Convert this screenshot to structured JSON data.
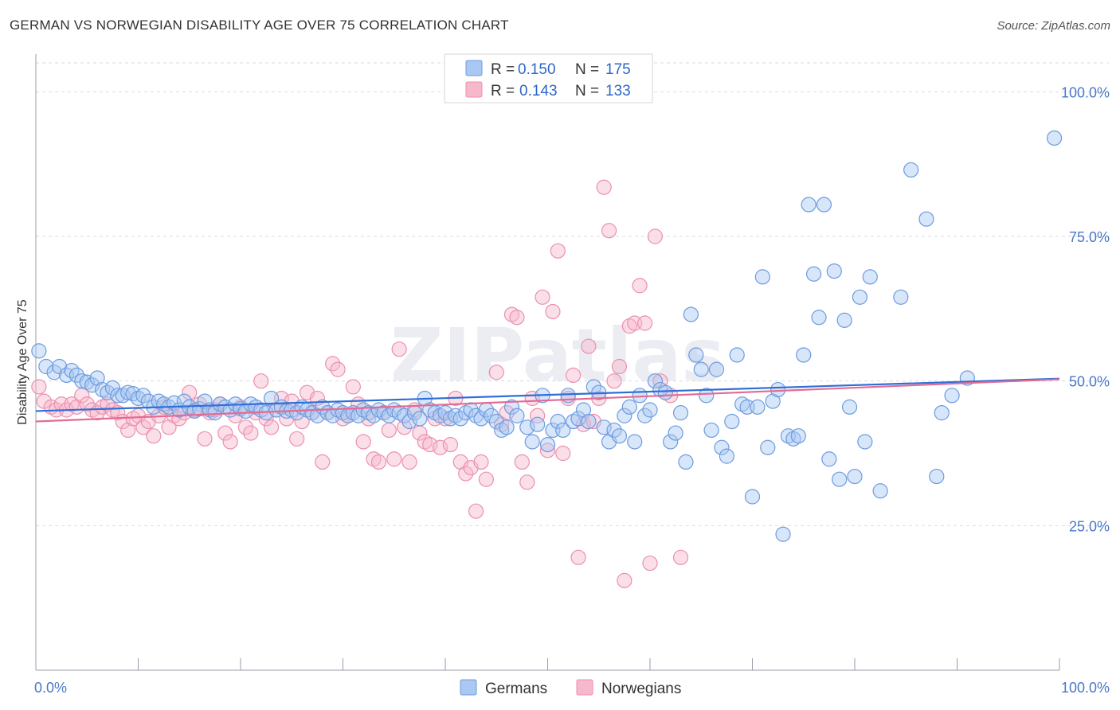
{
  "title": "GERMAN VS NORWEGIAN DISABILITY AGE OVER 75 CORRELATION CHART",
  "source": "Source: ZipAtlas.com",
  "watermark": "ZIPatlas",
  "colors": {
    "german_fill": "#a9c8f2",
    "german_stroke": "#6d9be0",
    "german_line": "#2f6fd6",
    "norwegian_fill": "#f6b9cc",
    "norwegian_stroke": "#ec8fae",
    "norwegian_line": "#e46b93",
    "grid": "#d8dbe2",
    "tick_text": "#4a78c8"
  },
  "legend": {
    "germans": {
      "r_label": "R =",
      "r_value": "0.150",
      "n_label": "N =",
      "n_value": "175"
    },
    "norwegians": {
      "r_label": "R =",
      "r_value": "0.143",
      "n_label": "N =",
      "n_value": "133"
    }
  },
  "chart_data": {
    "type": "scatter",
    "title": "GERMAN VS NORWEGIAN DISABILITY AGE OVER 75 CORRELATION CHART",
    "xlabel": "",
    "ylabel": "Disability Age Over 75",
    "xlim": [
      0,
      100
    ],
    "ylim": [
      0,
      105
    ],
    "x_tick_labels": [
      "0.0%",
      "100.0%"
    ],
    "y_ticks": [
      25,
      50,
      75,
      100
    ],
    "y_tick_labels": [
      "25.0%",
      "50.0%",
      "75.0%",
      "100.0%"
    ],
    "grid": true,
    "legend_position": "bottom-center",
    "series": [
      {
        "name": "Germans",
        "trend": [
          [
            0,
            44.8
          ],
          [
            100,
            50.4
          ]
        ],
        "points": [
          [
            0.3,
            55.2
          ],
          [
            1,
            52.5
          ],
          [
            1.8,
            51.5
          ],
          [
            2.3,
            52.5
          ],
          [
            3,
            51
          ],
          [
            3.5,
            51.8
          ],
          [
            4,
            51
          ],
          [
            4.5,
            50
          ],
          [
            5,
            49.8
          ],
          [
            5.5,
            49.3
          ],
          [
            6,
            50.5
          ],
          [
            6.5,
            48.5
          ],
          [
            7,
            48
          ],
          [
            7.5,
            48.8
          ],
          [
            8,
            47.5
          ],
          [
            8.5,
            47.5
          ],
          [
            9,
            48
          ],
          [
            9.5,
            47.8
          ],
          [
            10,
            47
          ],
          [
            10.5,
            47.5
          ],
          [
            11,
            46.5
          ],
          [
            11.5,
            45.5
          ],
          [
            12,
            46.5
          ],
          [
            12.5,
            46
          ],
          [
            13,
            45.5
          ],
          [
            13.5,
            46.2
          ],
          [
            14,
            45
          ],
          [
            14.5,
            46.5
          ],
          [
            15,
            45.5
          ],
          [
            15.5,
            44.8
          ],
          [
            16,
            45.2
          ],
          [
            16.5,
            46.5
          ],
          [
            17,
            45
          ],
          [
            17.5,
            44.5
          ],
          [
            18,
            46
          ],
          [
            18.5,
            45.5
          ],
          [
            19,
            45
          ],
          [
            19.5,
            46
          ],
          [
            20,
            45.2
          ],
          [
            20.5,
            44.8
          ],
          [
            21,
            46
          ],
          [
            21.5,
            45.5
          ],
          [
            22,
            45
          ],
          [
            22.5,
            44.5
          ],
          [
            23,
            47
          ],
          [
            23.5,
            45
          ],
          [
            24,
            45.5
          ],
          [
            24.5,
            44.8
          ],
          [
            25,
            45
          ],
          [
            25.5,
            44.5
          ],
          [
            26,
            45.5
          ],
          [
            26.5,
            45
          ],
          [
            27,
            44.5
          ],
          [
            27.5,
            44
          ],
          [
            28,
            45.5
          ],
          [
            28.5,
            44.5
          ],
          [
            29,
            44
          ],
          [
            29.5,
            45
          ],
          [
            30,
            44.5
          ],
          [
            30.5,
            44
          ],
          [
            31,
            44.5
          ],
          [
            31.5,
            44
          ],
          [
            32,
            45
          ],
          [
            32.5,
            44.5
          ],
          [
            33,
            44
          ],
          [
            33.5,
            45
          ],
          [
            34,
            44.5
          ],
          [
            34.5,
            44
          ],
          [
            35,
            45
          ],
          [
            35.5,
            44.5
          ],
          [
            36,
            44
          ],
          [
            36.5,
            43
          ],
          [
            37,
            44.5
          ],
          [
            37.5,
            43.5
          ],
          [
            38,
            47
          ],
          [
            38.5,
            45
          ],
          [
            39,
            44.5
          ],
          [
            39.5,
            44
          ],
          [
            40,
            44.5
          ],
          [
            40.5,
            43.5
          ],
          [
            41,
            44
          ],
          [
            41.5,
            43.5
          ],
          [
            42,
            44.5
          ],
          [
            42.5,
            45
          ],
          [
            43,
            44
          ],
          [
            43.5,
            43.5
          ],
          [
            44,
            45
          ],
          [
            44.5,
            44
          ],
          [
            45,
            43
          ],
          [
            45.5,
            41.5
          ],
          [
            46,
            42
          ],
          [
            46.5,
            45.5
          ],
          [
            47,
            44
          ],
          [
            48,
            42
          ],
          [
            48.5,
            39.5
          ],
          [
            49,
            42.5
          ],
          [
            49.5,
            47.5
          ],
          [
            50,
            39
          ],
          [
            50.5,
            41.5
          ],
          [
            51,
            43
          ],
          [
            51.5,
            41.5
          ],
          [
            52,
            47.5
          ],
          [
            52.5,
            43
          ],
          [
            53,
            43.5
          ],
          [
            53.5,
            45
          ],
          [
            54,
            43
          ],
          [
            54.5,
            49
          ],
          [
            55,
            48
          ],
          [
            55.5,
            42
          ],
          [
            56,
            39.5
          ],
          [
            56.5,
            41.5
          ],
          [
            57,
            40.5
          ],
          [
            57.5,
            44
          ],
          [
            58,
            45.5
          ],
          [
            58.5,
            39.5
          ],
          [
            59,
            47.5
          ],
          [
            59.5,
            44
          ],
          [
            60,
            45
          ],
          [
            60.5,
            50
          ],
          [
            61,
            48.5
          ],
          [
            61.5,
            48
          ],
          [
            62,
            39.5
          ],
          [
            62.5,
            41
          ],
          [
            63,
            44.5
          ],
          [
            63.5,
            36
          ],
          [
            64,
            61.5
          ],
          [
            64.5,
            54.5
          ],
          [
            65,
            52
          ],
          [
            65.5,
            47.5
          ],
          [
            66,
            41.5
          ],
          [
            66.5,
            52
          ],
          [
            67,
            38.5
          ],
          [
            67.5,
            37
          ],
          [
            68,
            43
          ],
          [
            68.5,
            54.5
          ],
          [
            69,
            46
          ],
          [
            69.5,
            45.5
          ],
          [
            70,
            30
          ],
          [
            70.5,
            45.5
          ],
          [
            71,
            68
          ],
          [
            71.5,
            38.5
          ],
          [
            72,
            46.5
          ],
          [
            72.5,
            48.5
          ],
          [
            73,
            23.5
          ],
          [
            73.5,
            40.5
          ],
          [
            74,
            40
          ],
          [
            74.5,
            40.5
          ],
          [
            75,
            54.5
          ],
          [
            75.5,
            80.5
          ],
          [
            76,
            68.5
          ],
          [
            76.5,
            61
          ],
          [
            77,
            80.5
          ],
          [
            77.5,
            36.5
          ],
          [
            78,
            69
          ],
          [
            78.5,
            33
          ],
          [
            79,
            60.5
          ],
          [
            79.5,
            45.5
          ],
          [
            80,
            33.5
          ],
          [
            80.5,
            64.5
          ],
          [
            81,
            39.5
          ],
          [
            81.5,
            68
          ],
          [
            82.5,
            31
          ],
          [
            84.5,
            64.5
          ],
          [
            85.5,
            86.5
          ],
          [
            87,
            78
          ],
          [
            88,
            33.5
          ],
          [
            88.5,
            44.5
          ],
          [
            89.5,
            47.5
          ],
          [
            91,
            50.5
          ],
          [
            99.5,
            92
          ]
        ]
      },
      {
        "name": "Norwegians",
        "trend": [
          [
            0,
            43
          ],
          [
            100,
            50.3
          ]
        ],
        "points": [
          [
            0.3,
            49
          ],
          [
            0.8,
            46.5
          ],
          [
            1.5,
            45.5
          ],
          [
            2,
            45
          ],
          [
            2.5,
            46
          ],
          [
            3,
            45
          ],
          [
            3.5,
            46
          ],
          [
            4,
            45.5
          ],
          [
            4.5,
            47.5
          ],
          [
            5,
            46
          ],
          [
            5.5,
            45
          ],
          [
            6,
            44.5
          ],
          [
            6.5,
            45.5
          ],
          [
            7,
            46
          ],
          [
            7.5,
            45
          ],
          [
            8,
            44.5
          ],
          [
            8.5,
            43
          ],
          [
            9,
            41.5
          ],
          [
            9.5,
            43.5
          ],
          [
            10,
            44
          ],
          [
            10.5,
            42
          ],
          [
            11,
            43
          ],
          [
            11.5,
            40.5
          ],
          [
            12,
            44
          ],
          [
            12.5,
            45.5
          ],
          [
            13,
            42
          ],
          [
            13.5,
            44
          ],
          [
            14,
            43.5
          ],
          [
            14.5,
            44.5
          ],
          [
            15,
            48
          ],
          [
            15.5,
            45
          ],
          [
            16,
            46
          ],
          [
            16.5,
            40
          ],
          [
            17,
            44.5
          ],
          [
            17.5,
            45
          ],
          [
            18,
            46
          ],
          [
            18.5,
            41
          ],
          [
            19,
            39.5
          ],
          [
            19.5,
            44
          ],
          [
            20,
            45.5
          ],
          [
            20.5,
            42
          ],
          [
            21,
            41
          ],
          [
            21.5,
            44.5
          ],
          [
            22,
            50
          ],
          [
            22.5,
            43.5
          ],
          [
            23,
            42
          ],
          [
            23.5,
            45
          ],
          [
            24,
            47
          ],
          [
            24.5,
            43.5
          ],
          [
            25,
            46.5
          ],
          [
            25.5,
            40
          ],
          [
            26,
            43
          ],
          [
            26.5,
            48
          ],
          [
            27,
            44.5
          ],
          [
            27.5,
            47
          ],
          [
            28,
            36
          ],
          [
            28.5,
            44.5
          ],
          [
            29,
            53
          ],
          [
            29.5,
            52
          ],
          [
            30,
            43.5
          ],
          [
            30.5,
            44
          ],
          [
            31,
            49
          ],
          [
            31.5,
            46
          ],
          [
            32,
            39.5
          ],
          [
            32.5,
            43.5
          ],
          [
            33,
            36.5
          ],
          [
            33.5,
            36
          ],
          [
            34,
            44.5
          ],
          [
            34.5,
            41.5
          ],
          [
            35,
            36.5
          ],
          [
            35.5,
            55.5
          ],
          [
            36,
            42
          ],
          [
            36.5,
            36
          ],
          [
            37,
            45
          ],
          [
            37.5,
            41
          ],
          [
            38,
            39.5
          ],
          [
            38.5,
            39
          ],
          [
            39,
            43.5
          ],
          [
            39.5,
            38.5
          ],
          [
            40,
            43.5
          ],
          [
            40.5,
            39
          ],
          [
            41,
            47
          ],
          [
            41.5,
            36
          ],
          [
            42,
            34
          ],
          [
            42.5,
            35
          ],
          [
            43,
            27.5
          ],
          [
            43.5,
            36
          ],
          [
            44,
            33
          ],
          [
            45,
            51.5
          ],
          [
            45.5,
            42.5
          ],
          [
            46,
            44.5
          ],
          [
            46.5,
            61.5
          ],
          [
            47,
            61
          ],
          [
            47.5,
            36
          ],
          [
            48,
            32.5
          ],
          [
            48.5,
            47
          ],
          [
            49,
            44
          ],
          [
            49.5,
            64.5
          ],
          [
            50,
            38
          ],
          [
            50.5,
            62
          ],
          [
            51,
            72.5
          ],
          [
            51.5,
            37.5
          ],
          [
            52,
            47
          ],
          [
            52.5,
            51
          ],
          [
            53,
            19.5
          ],
          [
            53.5,
            42.5
          ],
          [
            54,
            56
          ],
          [
            54.5,
            43
          ],
          [
            55,
            47
          ],
          [
            55.5,
            83.5
          ],
          [
            56,
            76
          ],
          [
            56.5,
            50
          ],
          [
            57,
            52.5
          ],
          [
            57.5,
            15.5
          ],
          [
            58,
            59.5
          ],
          [
            58.5,
            60
          ],
          [
            59,
            66.5
          ],
          [
            59.5,
            60
          ],
          [
            60,
            18.5
          ],
          [
            60.5,
            75
          ],
          [
            61,
            50
          ],
          [
            62,
            47.5
          ],
          [
            63,
            19.5
          ]
        ]
      }
    ]
  },
  "bottom_legend": [
    {
      "label": "Germans"
    },
    {
      "label": "Norwegians"
    }
  ]
}
